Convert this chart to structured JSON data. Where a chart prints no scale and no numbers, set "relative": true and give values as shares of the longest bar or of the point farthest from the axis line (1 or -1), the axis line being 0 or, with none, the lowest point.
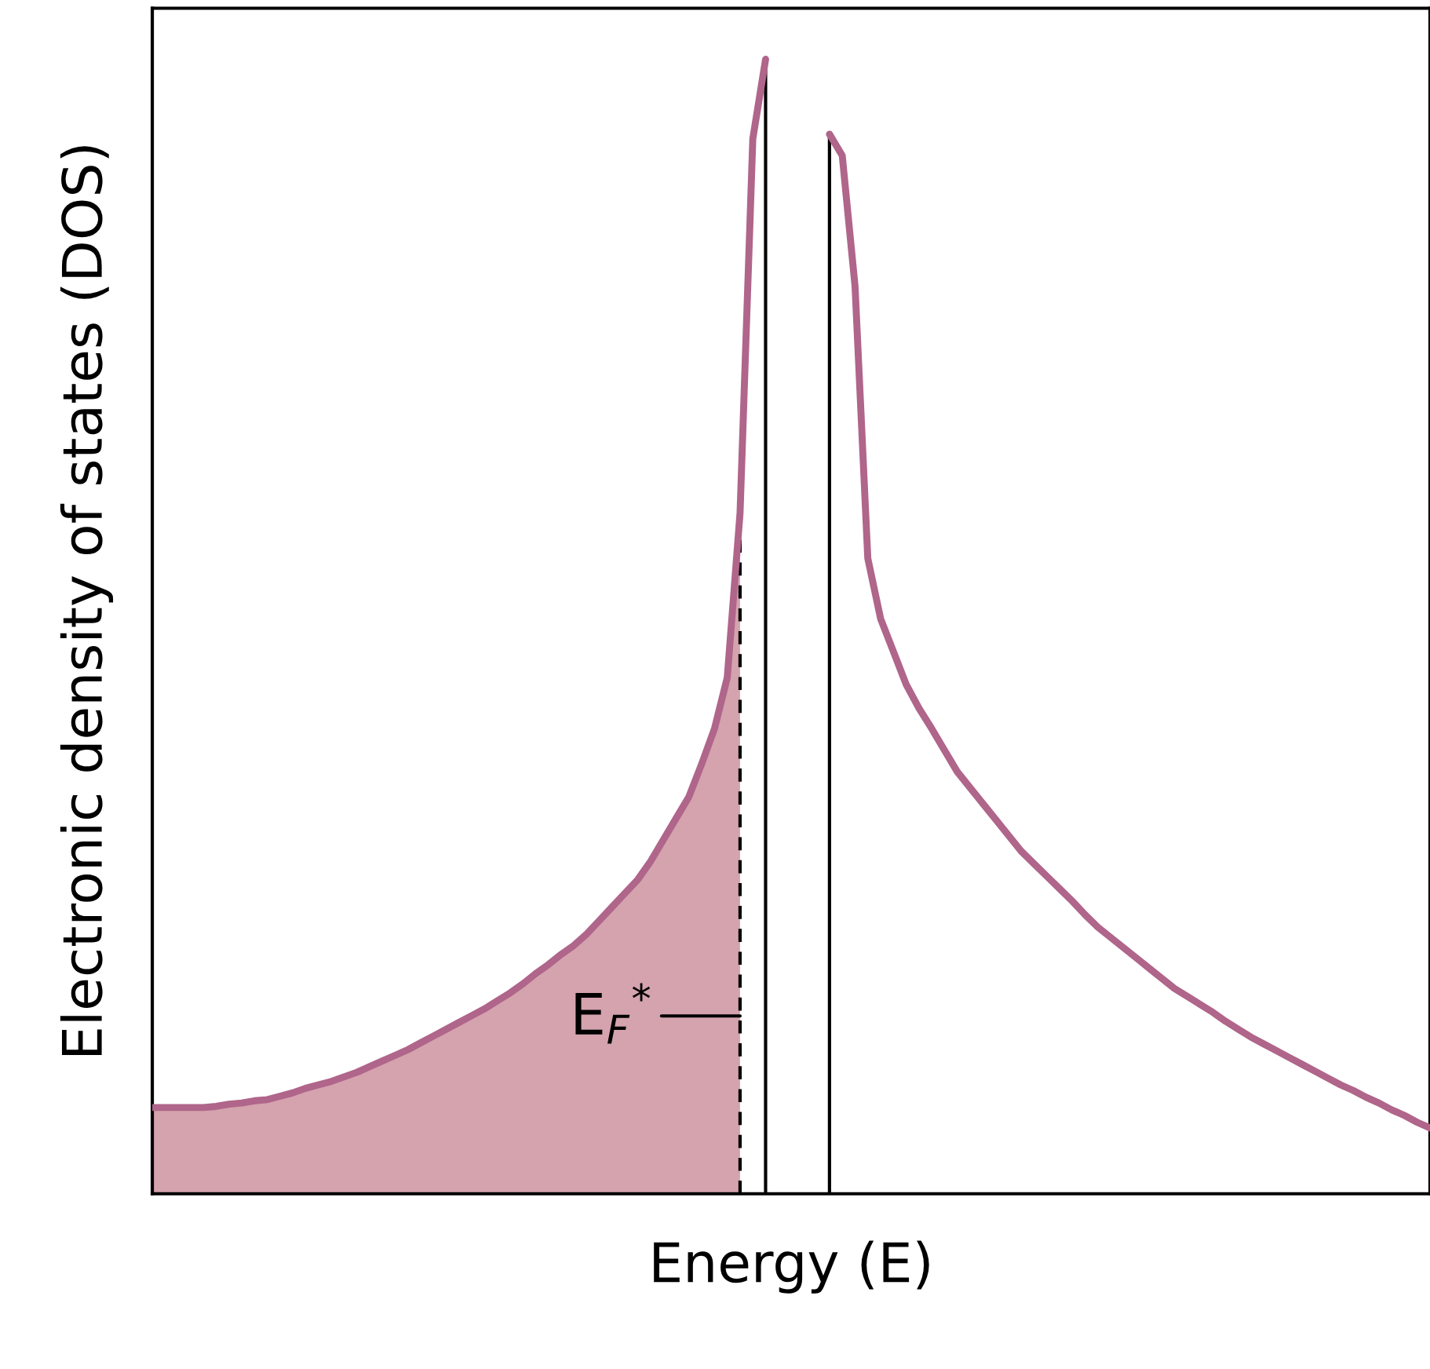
{
  "chart_data": {
    "type": "line",
    "relative": true,
    "xlabel": "Energy (E)",
    "ylabel": "Electronic density of states (DOS)",
    "categories": [
      null,
      null,
      null,
      null,
      null,
      null,
      null,
      null,
      null,
      null,
      null,
      null,
      null,
      null,
      null,
      null,
      null,
      null,
      null,
      null,
      null,
      null,
      null,
      null,
      null,
      null,
      null,
      null,
      null,
      null,
      null,
      null,
      null,
      null,
      null,
      null,
      null,
      null,
      null,
      null,
      null,
      null,
      null,
      null,
      null,
      null,
      null,
      null,
      null,
      null,
      null,
      null,
      null,
      null,
      null,
      null,
      null,
      null,
      null,
      null,
      null,
      null,
      null,
      null,
      null,
      null,
      null,
      null,
      null,
      null,
      null,
      null,
      null,
      null,
      null,
      null,
      null,
      null,
      null,
      null,
      null,
      null,
      null,
      null,
      null,
      null,
      null,
      null,
      null,
      null,
      null,
      null,
      null,
      null,
      null,
      null,
      null,
      null,
      null,
      null,
      null
    ],
    "annotations": [
      "E$_{F}$$^{*}$"
    ],
    "series": [
      {
        "type": "area",
        "color": "#d4a3ae",
        "values": [
          0.076,
          0.076,
          0.076,
          0.076,
          0.076,
          0.077,
          0.079,
          0.08,
          0.082,
          0.083,
          0.086,
          0.089,
          0.093,
          0.096,
          0.099,
          0.103,
          0.107,
          0.112,
          0.117,
          0.122,
          0.127,
          0.133,
          0.139,
          0.145,
          0.151,
          0.157,
          0.163,
          0.17,
          0.177,
          0.185,
          0.194,
          0.202,
          0.211,
          0.219,
          0.229,
          0.241,
          0.253,
          0.265,
          0.277,
          0.293,
          0.312,
          0.331,
          0.35,
          0.379,
          0.41,
          0.455,
          0.6,
          null,
          null,
          null,
          null,
          null,
          null,
          null,
          null,
          null,
          null,
          null,
          null,
          null,
          null,
          null,
          null,
          null,
          null,
          null,
          null,
          null,
          null,
          null,
          null,
          null,
          null,
          null,
          null,
          null,
          null,
          null,
          null,
          null,
          null,
          null,
          null,
          null,
          null,
          null,
          null,
          null,
          null,
          null,
          null,
          null,
          null,
          null,
          null,
          null,
          null,
          null,
          null,
          null,
          null
        ]
      },
      {
        "color": "#b0658a",
        "values": [
          0.076,
          0.076,
          0.076,
          0.076,
          0.076,
          0.077,
          0.079,
          0.08,
          0.082,
          0.083,
          0.086,
          0.089,
          0.093,
          0.096,
          0.099,
          0.103,
          0.107,
          0.112,
          0.117,
          0.122,
          0.127,
          0.133,
          0.139,
          0.145,
          0.151,
          0.157,
          0.163,
          0.17,
          0.177,
          0.185,
          0.194,
          0.202,
          0.211,
          0.219,
          0.229,
          0.241,
          0.253,
          0.265,
          0.277,
          0.293,
          0.312,
          0.331,
          0.35,
          0.379,
          0.41,
          0.455,
          0.6,
          0.93,
          1.0,
          null,
          null,
          null,
          null,
          null,
          null,
          null,
          null,
          null,
          null,
          null,
          null,
          null,
          null,
          null,
          null,
          null,
          null,
          null,
          null,
          null,
          null,
          null,
          null,
          null,
          null,
          null,
          null,
          null,
          null,
          null,
          null,
          null,
          null,
          null,
          null,
          null,
          null,
          null,
          null,
          null,
          null,
          null,
          null,
          null,
          null,
          null,
          null,
          null,
          null,
          null,
          null
        ]
      },
      {
        "color": "#b0658a",
        "values": [
          null,
          null,
          null,
          null,
          null,
          null,
          null,
          null,
          null,
          null,
          null,
          null,
          null,
          null,
          null,
          null,
          null,
          null,
          null,
          null,
          null,
          null,
          null,
          null,
          null,
          null,
          null,
          null,
          null,
          null,
          null,
          null,
          null,
          null,
          null,
          null,
          null,
          null,
          null,
          null,
          null,
          null,
          null,
          null,
          null,
          null,
          null,
          null,
          null,
          null,
          null,
          null,
          null,
          0.934,
          0.915,
          0.8,
          0.56,
          0.507,
          0.478,
          0.449,
          0.428,
          0.41,
          0.391,
          0.372,
          0.358,
          0.344,
          0.33,
          0.316,
          0.302,
          0.291,
          0.28,
          0.269,
          0.258,
          0.246,
          0.235,
          0.226,
          0.217,
          0.208,
          0.199,
          0.19,
          0.181,
          0.174,
          0.167,
          0.16,
          0.152,
          0.145,
          0.138,
          0.132,
          0.126,
          0.12,
          0.114,
          0.108,
          0.102,
          0.096,
          0.091,
          0.085,
          0.08,
          0.074,
          0.069,
          0.063,
          0.058
        ]
      }
    ]
  }
}
